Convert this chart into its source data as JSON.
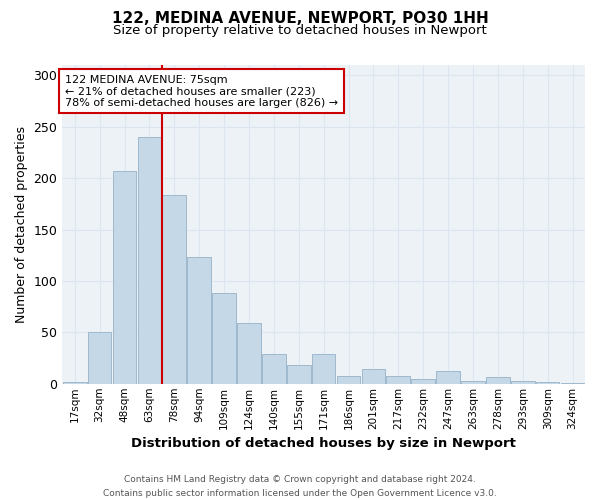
{
  "title1": "122, MEDINA AVENUE, NEWPORT, PO30 1HH",
  "title2": "Size of property relative to detached houses in Newport",
  "xlabel": "Distribution of detached houses by size in Newport",
  "ylabel": "Number of detached properties",
  "categories": [
    "17sqm",
    "32sqm",
    "48sqm",
    "63sqm",
    "78sqm",
    "94sqm",
    "109sqm",
    "124sqm",
    "140sqm",
    "155sqm",
    "171sqm",
    "186sqm",
    "201sqm",
    "217sqm",
    "232sqm",
    "247sqm",
    "263sqm",
    "278sqm",
    "293sqm",
    "309sqm",
    "324sqm"
  ],
  "values": [
    2,
    50,
    207,
    240,
    184,
    123,
    88,
    59,
    29,
    18,
    29,
    8,
    14,
    8,
    5,
    12,
    3,
    7,
    3,
    2,
    1
  ],
  "bar_color": "#c5d8e8",
  "bar_edge_color": "#a0b8cc",
  "grid_color": "#dce6f0",
  "vline_x_index": 4,
  "vline_color": "#cc0000",
  "annotation_text": "122 MEDINA AVENUE: 75sqm\n← 21% of detached houses are smaller (223)\n78% of semi-detached houses are larger (826) →",
  "annotation_box_color": "#ffffff",
  "annotation_box_edge": "#cc0000",
  "footer": "Contains HM Land Registry data © Crown copyright and database right 2024.\nContains public sector information licensed under the Open Government Licence v3.0.",
  "ylim": [
    0,
    310
  ],
  "yticks": [
    0,
    50,
    100,
    150,
    200,
    250,
    300
  ],
  "background_color": "#edf2f7"
}
